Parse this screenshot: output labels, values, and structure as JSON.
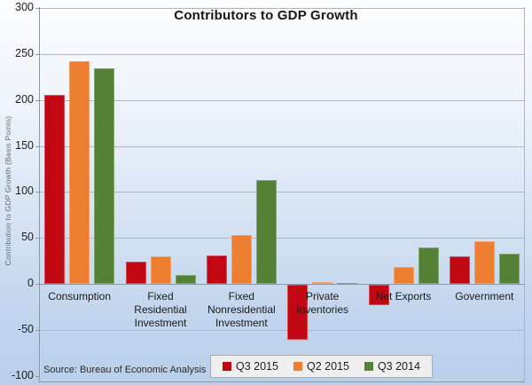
{
  "chart_data": {
    "type": "bar",
    "title": "Contributors to GDP Growth",
    "xlabel": "",
    "ylabel": "Contribution  to GDP Growth  (Basis Points)",
    "ylim": [
      -100,
      300
    ],
    "yticks": [
      300,
      250,
      200,
      150,
      100,
      50,
      0,
      -50,
      -100
    ],
    "grid": true,
    "legend_position": "bottom",
    "categories": [
      "Consumption",
      "Fixed Residential\nInvestment",
      "Fixed\nNonresidential\nInvestment",
      "Private\nInventories",
      "Net Exports",
      "Government"
    ],
    "series": [
      {
        "name": "Q3 2015",
        "color": "#c00712",
        "values": [
          205,
          24,
          31,
          -60,
          -22,
          30
        ]
      },
      {
        "name": "Q2 2015",
        "color": "#ed7d31",
        "values": [
          242,
          30,
          53,
          2,
          18,
          46
        ]
      },
      {
        "name": "Q3 2014",
        "color": "#538135",
        "values": [
          234,
          10,
          113,
          1,
          40,
          33
        ]
      }
    ],
    "source_note": "Source: Bureau of Economic Analysis",
    "style": {
      "background_top": "#fcfdff",
      "background_bottom": "#b9cfea",
      "gridline_color": "#a9b6c4",
      "legend_background": "#efefef"
    }
  }
}
